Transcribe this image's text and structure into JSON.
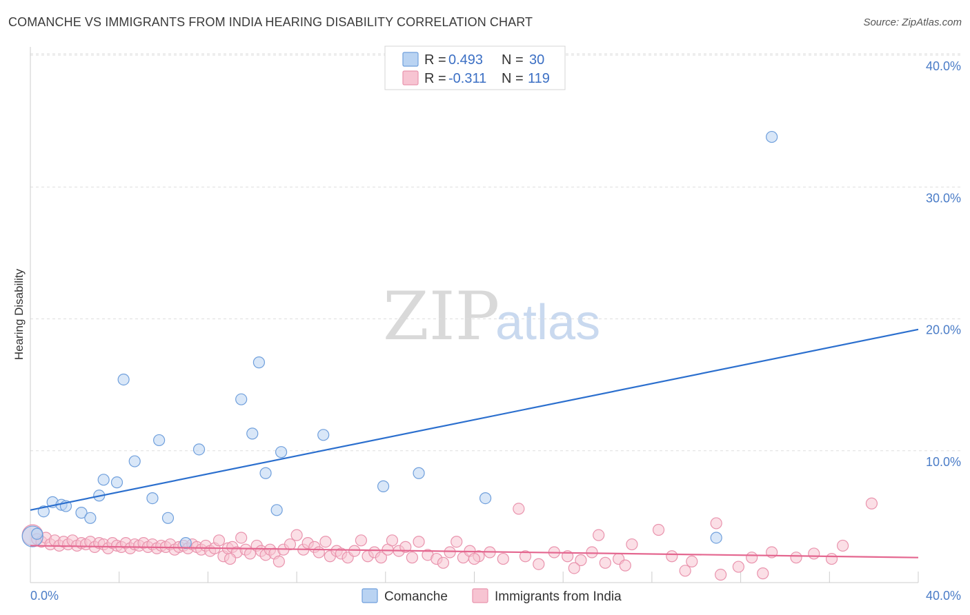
{
  "header": {
    "title": "COMANCHE VS IMMIGRANTS FROM INDIA HEARING DISABILITY CORRELATION CHART",
    "source": "Source: ZipAtlas.com"
  },
  "watermark": {
    "zip": "ZIP",
    "atlas": "atlas"
  },
  "legend": {
    "r_label": "R =",
    "n_label": "N =",
    "series": [
      {
        "r": "0.493",
        "n": "30"
      },
      {
        "r": "-0.311",
        "n": "119"
      }
    ]
  },
  "colors": {
    "comanche_fill": "#b9d3f2",
    "comanche_stroke": "#6f9fdc",
    "comanche_line": "#2b6fce",
    "india_fill": "#f7c4d2",
    "india_stroke": "#e993ad",
    "india_line": "#e4668f",
    "grid": "#dddddd"
  },
  "chart_data": {
    "type": "scatter",
    "title": "COMANCHE VS IMMIGRANTS FROM INDIA HEARING DISABILITY CORRELATION CHART",
    "ylabel": "Hearing Disability",
    "xlabel": "",
    "xlim": [
      0,
      40
    ],
    "ylim": [
      0,
      40
    ],
    "x_tick_labels": [
      "0.0%",
      "40.0%"
    ],
    "y_ticks": [
      {
        "value": 10,
        "label": "10.0%"
      },
      {
        "value": 20,
        "label": "20.0%"
      },
      {
        "value": 30,
        "label": "30.0%"
      },
      {
        "value": 40,
        "label": "40.0%"
      }
    ],
    "grid": true,
    "legend_placement": "top-center",
    "series": [
      {
        "name": "Comanche",
        "r": 0.493,
        "n": 30,
        "trend": {
          "x": [
            0,
            40
          ],
          "y": [
            5.5,
            19.2
          ]
        },
        "points": [
          [
            0.1,
            3.5
          ],
          [
            0.6,
            5.4
          ],
          [
            1.0,
            6.1
          ],
          [
            1.4,
            5.9
          ],
          [
            1.6,
            5.8
          ],
          [
            2.3,
            5.3
          ],
          [
            2.7,
            4.9
          ],
          [
            3.1,
            6.6
          ],
          [
            3.3,
            7.8
          ],
          [
            3.9,
            7.6
          ],
          [
            4.2,
            15.4
          ],
          [
            4.7,
            9.2
          ],
          [
            5.5,
            6.4
          ],
          [
            5.8,
            10.8
          ],
          [
            6.2,
            4.9
          ],
          [
            7.0,
            3.0
          ],
          [
            7.6,
            10.1
          ],
          [
            9.5,
            13.9
          ],
          [
            10.0,
            11.3
          ],
          [
            10.3,
            16.7
          ],
          [
            10.6,
            8.3
          ],
          [
            11.1,
            5.5
          ],
          [
            11.3,
            9.9
          ],
          [
            13.2,
            11.2
          ],
          [
            15.9,
            7.3
          ],
          [
            17.5,
            8.3
          ],
          [
            20.5,
            6.4
          ],
          [
            30.9,
            3.4
          ],
          [
            33.4,
            33.8
          ],
          [
            0.3,
            3.7
          ]
        ]
      },
      {
        "name": "Immigrants from India",
        "r": -0.311,
        "n": 119,
        "trend": {
          "x": [
            0,
            40
          ],
          "y": [
            2.8,
            1.9
          ]
        },
        "points": [
          [
            0.1,
            3.6
          ],
          [
            0.3,
            3.3
          ],
          [
            0.5,
            3.1
          ],
          [
            0.7,
            3.4
          ],
          [
            0.9,
            2.9
          ],
          [
            1.1,
            3.2
          ],
          [
            1.3,
            2.8
          ],
          [
            1.5,
            3.1
          ],
          [
            1.7,
            2.9
          ],
          [
            1.9,
            3.2
          ],
          [
            2.1,
            2.8
          ],
          [
            2.3,
            3.0
          ],
          [
            2.5,
            2.9
          ],
          [
            2.7,
            3.1
          ],
          [
            2.9,
            2.7
          ],
          [
            3.1,
            3.0
          ],
          [
            3.3,
            2.9
          ],
          [
            3.5,
            2.6
          ],
          [
            3.7,
            3.0
          ],
          [
            3.9,
            2.8
          ],
          [
            4.1,
            2.7
          ],
          [
            4.3,
            3.0
          ],
          [
            4.5,
            2.6
          ],
          [
            4.7,
            2.9
          ],
          [
            4.9,
            2.8
          ],
          [
            5.1,
            3.0
          ],
          [
            5.3,
            2.7
          ],
          [
            5.5,
            2.9
          ],
          [
            5.7,
            2.6
          ],
          [
            5.9,
            2.8
          ],
          [
            6.1,
            2.7
          ],
          [
            6.3,
            2.9
          ],
          [
            6.5,
            2.5
          ],
          [
            6.7,
            2.7
          ],
          [
            6.9,
            2.8
          ],
          [
            7.1,
            2.6
          ],
          [
            7.3,
            2.9
          ],
          [
            7.5,
            2.7
          ],
          [
            7.7,
            2.5
          ],
          [
            7.9,
            2.8
          ],
          [
            8.1,
            2.4
          ],
          [
            8.3,
            2.6
          ],
          [
            8.5,
            3.2
          ],
          [
            8.7,
            2.0
          ],
          [
            8.9,
            2.6
          ],
          [
            9.1,
            2.7
          ],
          [
            9.3,
            2.3
          ],
          [
            9.5,
            3.4
          ],
          [
            9.7,
            2.5
          ],
          [
            9.9,
            2.2
          ],
          [
            10.2,
            2.8
          ],
          [
            10.4,
            2.4
          ],
          [
            10.6,
            2.1
          ],
          [
            10.8,
            2.5
          ],
          [
            11.0,
            2.2
          ],
          [
            11.2,
            1.6
          ],
          [
            11.4,
            2.5
          ],
          [
            11.7,
            2.9
          ],
          [
            12.0,
            3.6
          ],
          [
            12.3,
            2.5
          ],
          [
            12.5,
            3.0
          ],
          [
            12.8,
            2.7
          ],
          [
            13.0,
            2.3
          ],
          [
            13.3,
            3.1
          ],
          [
            13.5,
            2.0
          ],
          [
            13.8,
            2.4
          ],
          [
            14.0,
            2.2
          ],
          [
            14.3,
            1.9
          ],
          [
            14.6,
            2.4
          ],
          [
            14.9,
            3.2
          ],
          [
            15.2,
            2.0
          ],
          [
            15.5,
            2.3
          ],
          [
            15.8,
            1.9
          ],
          [
            16.1,
            2.5
          ],
          [
            16.3,
            3.2
          ],
          [
            16.6,
            2.4
          ],
          [
            16.9,
            2.7
          ],
          [
            17.2,
            1.9
          ],
          [
            17.5,
            3.1
          ],
          [
            17.9,
            2.1
          ],
          [
            18.3,
            1.8
          ],
          [
            18.6,
            1.5
          ],
          [
            18.9,
            2.3
          ],
          [
            19.2,
            3.1
          ],
          [
            19.5,
            1.9
          ],
          [
            19.8,
            2.4
          ],
          [
            20.2,
            2.0
          ],
          [
            20.7,
            2.3
          ],
          [
            21.3,
            1.8
          ],
          [
            22.0,
            5.6
          ],
          [
            22.3,
            2.0
          ],
          [
            22.9,
            1.4
          ],
          [
            23.6,
            2.3
          ],
          [
            24.2,
            2.0
          ],
          [
            24.8,
            1.7
          ],
          [
            25.3,
            2.3
          ],
          [
            25.6,
            3.6
          ],
          [
            25.9,
            1.5
          ],
          [
            26.5,
            1.8
          ],
          [
            27.1,
            2.9
          ],
          [
            28.3,
            4.0
          ],
          [
            28.9,
            2.0
          ],
          [
            29.5,
            0.9
          ],
          [
            29.8,
            1.6
          ],
          [
            30.9,
            4.5
          ],
          [
            31.1,
            0.6
          ],
          [
            31.9,
            1.2
          ],
          [
            32.5,
            1.9
          ],
          [
            33.0,
            0.7
          ],
          [
            33.4,
            2.3
          ],
          [
            34.5,
            1.9
          ],
          [
            35.3,
            2.2
          ],
          [
            36.1,
            1.8
          ],
          [
            36.6,
            2.8
          ],
          [
            37.9,
            6.0
          ],
          [
            24.5,
            1.1
          ],
          [
            20.0,
            1.8
          ],
          [
            26.8,
            1.3
          ],
          [
            9.0,
            1.8
          ]
        ]
      }
    ]
  },
  "bottom_legend": [
    {
      "label": "Comanche"
    },
    {
      "label": "Immigrants from India"
    }
  ]
}
